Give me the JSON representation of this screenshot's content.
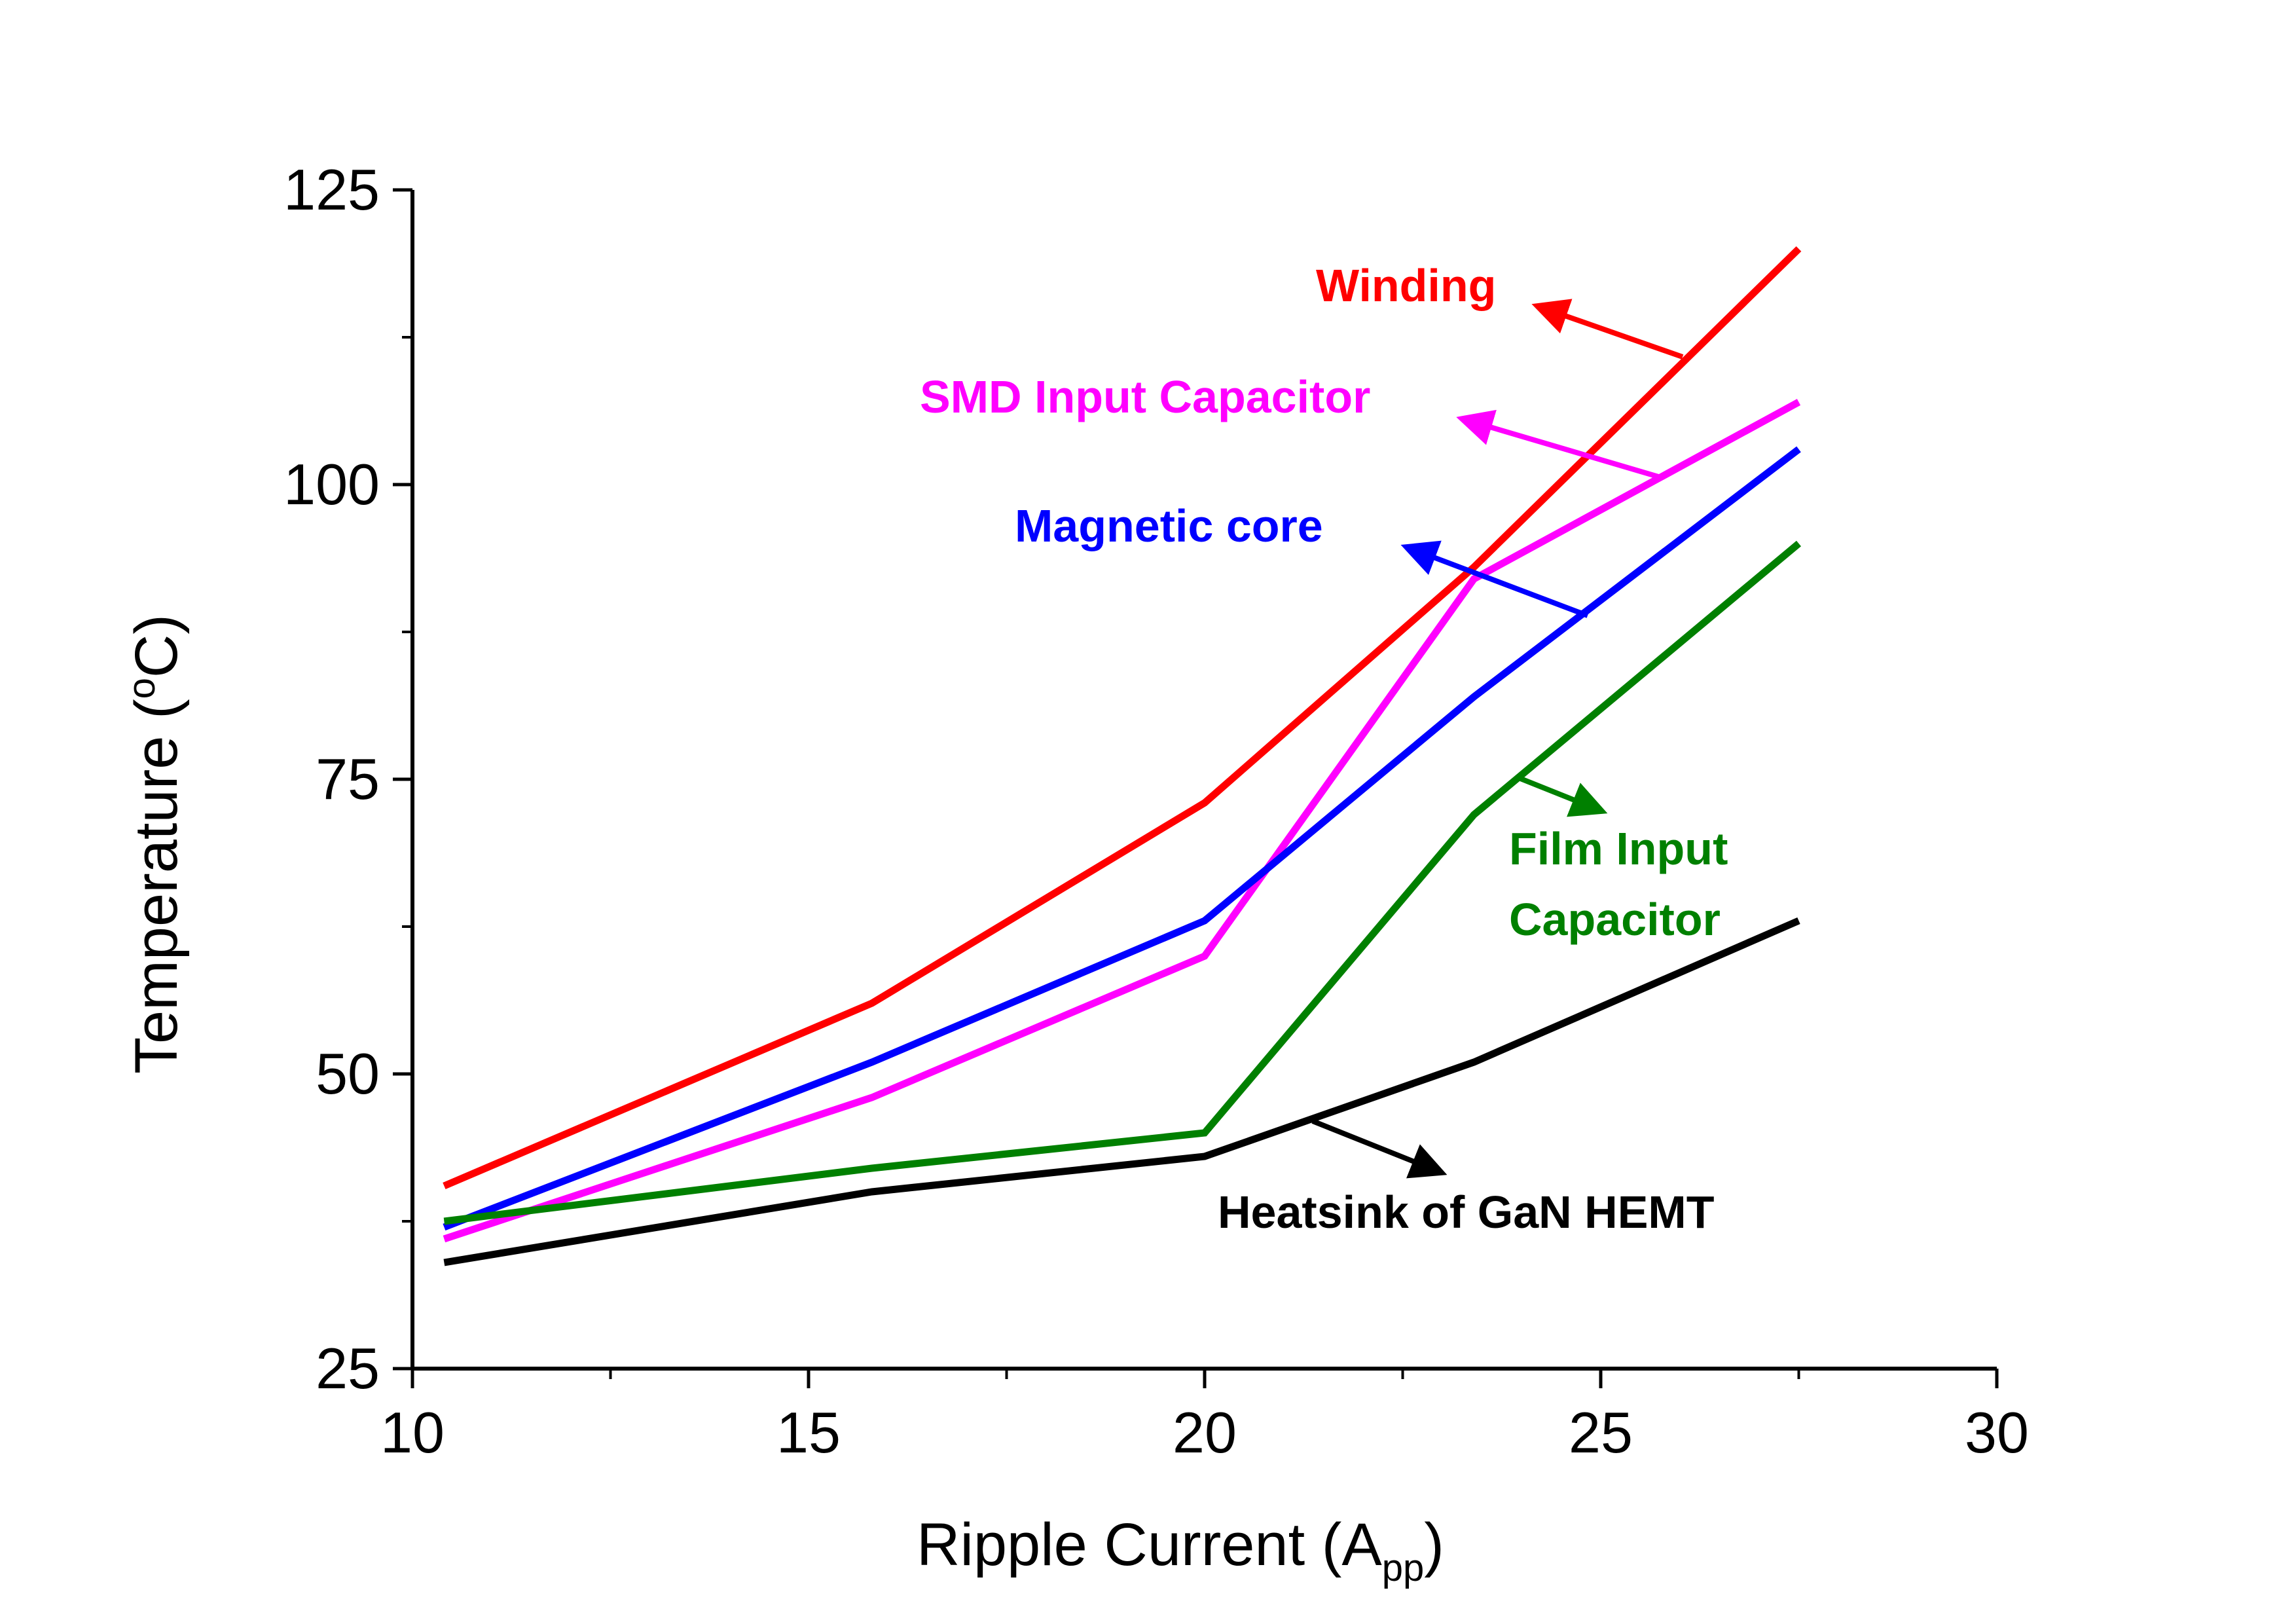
{
  "chart_data": {
    "type": "line",
    "title": "",
    "xlabel": "Ripple Current (A",
    "xlabel_sub": "pp",
    "xlabel_end": ")",
    "ylabel": "Temperature (",
    "ylabel_sup": "o",
    "ylabel_end": "C)",
    "xlim": [
      10,
      30
    ],
    "ylim": [
      25,
      125
    ],
    "x_ticks": [
      10,
      15,
      20,
      25,
      30
    ],
    "x_tick_labels": [
      "10",
      "15",
      "20",
      "25",
      "30"
    ],
    "y_ticks": [
      25,
      50,
      75,
      100,
      125
    ],
    "y_tick_labels": [
      "25",
      "50",
      "75",
      "100",
      "125"
    ],
    "grid": false,
    "legend": "none (inline annotations)",
    "series": [
      {
        "name": "Winding",
        "color": "#ff0000",
        "x": [
          10.4,
          15.8,
          20.0,
          23.4,
          27.5
        ],
        "y": [
          40.5,
          56,
          73,
          93,
          120
        ]
      },
      {
        "name": "SMD Input Capacitor",
        "color": "#ff00ff",
        "x": [
          10.4,
          15.8,
          20.0,
          23.4,
          27.5
        ],
        "y": [
          36,
          48,
          60,
          92,
          107
        ]
      },
      {
        "name": "Magnetic core",
        "color": "#0000ff",
        "x": [
          10.4,
          15.8,
          20.0,
          23.4,
          27.5
        ],
        "y": [
          37,
          51,
          63,
          82,
          103
        ]
      },
      {
        "name": "Film Input Capacitor",
        "color": "#008000",
        "x": [
          10.4,
          15.8,
          20.0,
          23.4,
          27.5
        ],
        "y": [
          37.5,
          42,
          45,
          72,
          95
        ]
      },
      {
        "name": "Heatsink of GaN HEMT",
        "color": "#000000",
        "x": [
          10.4,
          15.8,
          20.0,
          23.4,
          27.5
        ],
        "y": [
          34,
          40,
          43,
          51,
          63
        ]
      }
    ],
    "annotations": [
      {
        "text": "Winding",
        "color": "#ff0000"
      },
      {
        "text": "SMD Input Capacitor",
        "color": "#ff00ff"
      },
      {
        "text": "Magnetic core",
        "color": "#0000ff"
      },
      {
        "text": "Film Input",
        "text2": "Capacitor",
        "color": "#008000"
      },
      {
        "text": "Heatsink of GaN HEMT",
        "color": "#000000"
      }
    ]
  }
}
